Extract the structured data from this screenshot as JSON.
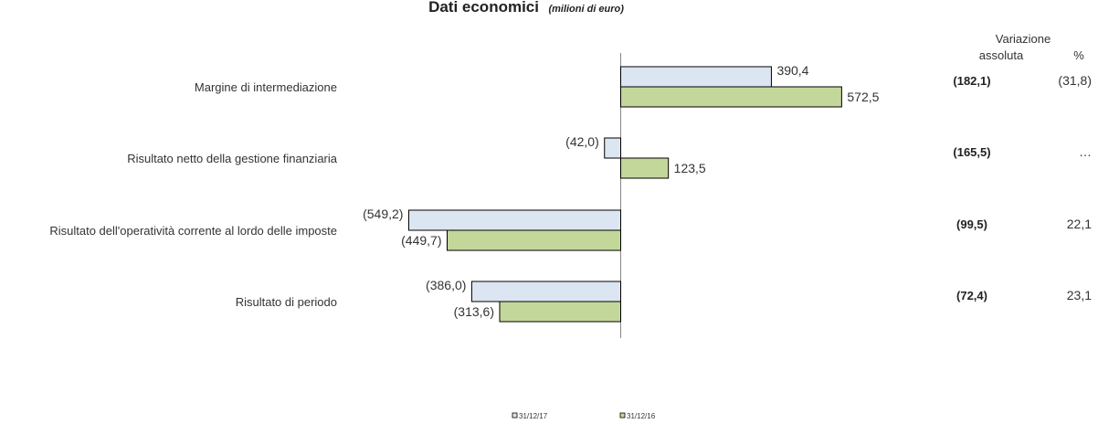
{
  "chart_data": {
    "type": "bar",
    "orientation": "horizontal",
    "title": "Dati economici",
    "subtitle": "(milioni di euro)",
    "categories": [
      "Margine di intermediazione",
      "Risultato netto della gestione finanziaria",
      "Risultato dell'operatività corrente al lordo delle imposte",
      "Risultato di periodo"
    ],
    "series": [
      {
        "name": "31/12/17",
        "values": [
          390.4,
          -42.0,
          -549.2,
          -386.0
        ],
        "labels": [
          "390,4",
          "(42,0)",
          "(549,2)",
          "(386,0)"
        ],
        "color": "#dce6f2"
      },
      {
        "name": "31/12/16",
        "values": [
          572.5,
          123.5,
          -449.7,
          -313.6
        ],
        "labels": [
          "572,5",
          "123,5",
          "(449,7)",
          "(313,6)"
        ],
        "color": "#c4d79b"
      }
    ],
    "legend_position": "bottom-center",
    "grid": false
  },
  "variation": {
    "header_line1": "Variazione",
    "header_abs": "assoluta",
    "header_pct": "%",
    "absolute": [
      "(182,1)",
      "(165,5)",
      "(99,5)",
      "(72,4)"
    ],
    "percent": [
      "(31,8)",
      "…",
      "22,1",
      "23,1"
    ]
  }
}
